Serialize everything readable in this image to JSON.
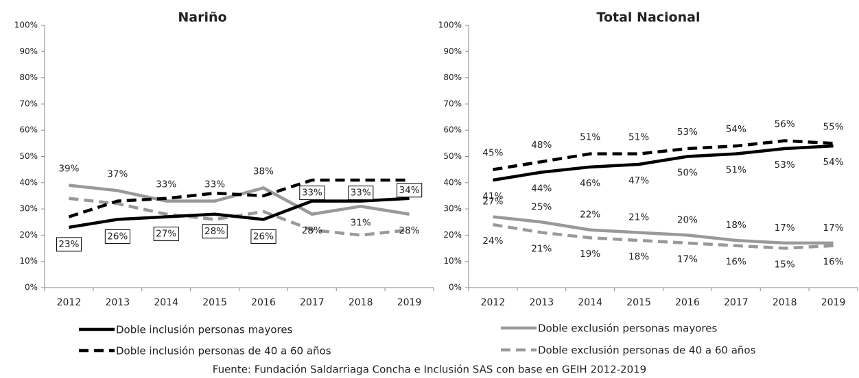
{
  "chart_data": [
    {
      "type": "line",
      "title": "Nariño",
      "categories": [
        "2012",
        "2013",
        "2014",
        "2015",
        "2016",
        "2017",
        "2018",
        "2019"
      ],
      "ylim": [
        0,
        100
      ],
      "yticks": [
        {
          "value": 0,
          "label": "0%"
        },
        {
          "value": 10,
          "label": "10%"
        },
        {
          "value": 20,
          "label": "20%"
        },
        {
          "value": 30,
          "label": "30%"
        },
        {
          "value": 40,
          "label": "40%"
        },
        {
          "value": 50,
          "label": "50%"
        },
        {
          "value": 60,
          "label": "60%"
        },
        {
          "value": 70,
          "label": "70%"
        },
        {
          "value": 80,
          "label": "80%"
        },
        {
          "value": 90,
          "label": "90%"
        },
        {
          "value": 100,
          "label": "100%"
        }
      ],
      "series": [
        {
          "name": "Doble inclusión personas mayores",
          "color": "#000000",
          "dashed": false,
          "values": [
            23,
            26,
            27,
            28,
            26,
            33,
            33,
            34
          ],
          "value_labels": [
            "23%",
            "26%",
            "27%",
            "28%",
            "26%",
            "33%",
            "33%",
            "34%"
          ]
        },
        {
          "name": "Doble inclusión personas de 40 a 60 años",
          "color": "#000000",
          "dashed": true,
          "values": [
            27,
            33,
            34,
            36,
            35,
            41,
            41,
            41
          ]
        },
        {
          "name": "Doble exclusión personas mayores",
          "color": "#999999",
          "dashed": false,
          "values": [
            39,
            37,
            33,
            33,
            38,
            28,
            31,
            28
          ],
          "value_labels": [
            "39%",
            "37%",
            "33%",
            "33%",
            "38%",
            "28%",
            "31%",
            "28%"
          ]
        },
        {
          "name": "Doble exclusión personas de 40 a 60 años",
          "color": "#999999",
          "dashed": true,
          "values": [
            34,
            32,
            28,
            26,
            29,
            22,
            20,
            22
          ]
        }
      ]
    },
    {
      "type": "line",
      "title": "Total Nacional",
      "categories": [
        "2012",
        "2013",
        "2014",
        "2015",
        "2016",
        "2017",
        "2018",
        "2019"
      ],
      "ylim": [
        0,
        100
      ],
      "yticks": [
        {
          "value": 0,
          "label": "0%"
        },
        {
          "value": 10,
          "label": "10%"
        },
        {
          "value": 20,
          "label": "20%"
        },
        {
          "value": 30,
          "label": "30%"
        },
        {
          "value": 40,
          "label": "40%"
        },
        {
          "value": 50,
          "label": "50%"
        },
        {
          "value": 60,
          "label": "60%"
        },
        {
          "value": 70,
          "label": "70%"
        },
        {
          "value": 80,
          "label": "80%"
        },
        {
          "value": 90,
          "label": "90%"
        },
        {
          "value": 100,
          "label": "100%"
        }
      ],
      "series": [
        {
          "name": "Doble inclusión personas mayores",
          "color": "#000000",
          "dashed": false,
          "values": [
            41,
            44,
            46,
            47,
            50,
            51,
            53,
            54
          ],
          "value_labels": [
            "41%",
            "44%",
            "46%",
            "47%",
            "50%",
            "51%",
            "53%",
            "54%"
          ]
        },
        {
          "name": "Doble inclusión personas de 40 a 60 años",
          "color": "#000000",
          "dashed": true,
          "values": [
            45,
            48,
            51,
            51,
            53,
            54,
            56,
            55
          ],
          "value_labels": [
            "45%",
            "48%",
            "51%",
            "51%",
            "53%",
            "54%",
            "56%",
            "55%"
          ]
        },
        {
          "name": "Doble exclusión personas mayores",
          "color": "#999999",
          "dashed": false,
          "values": [
            27,
            25,
            22,
            21,
            20,
            18,
            17,
            17
          ],
          "value_labels": [
            "27%",
            "25%",
            "22%",
            "21%",
            "20%",
            "18%",
            "17%",
            "17%"
          ]
        },
        {
          "name": "Doble exclusión personas de 40 a 60 años",
          "color": "#999999",
          "dashed": true,
          "values": [
            24,
            21,
            19,
            18,
            17,
            16,
            15,
            16
          ],
          "value_labels": [
            "24%",
            "21%",
            "19%",
            "18%",
            "17%",
            "16%",
            "15%",
            "16%"
          ]
        }
      ]
    }
  ],
  "source": "Fuente: Fundación Saldarriaga Concha e Inclusión SAS con base en GEIH 2012-2019"
}
